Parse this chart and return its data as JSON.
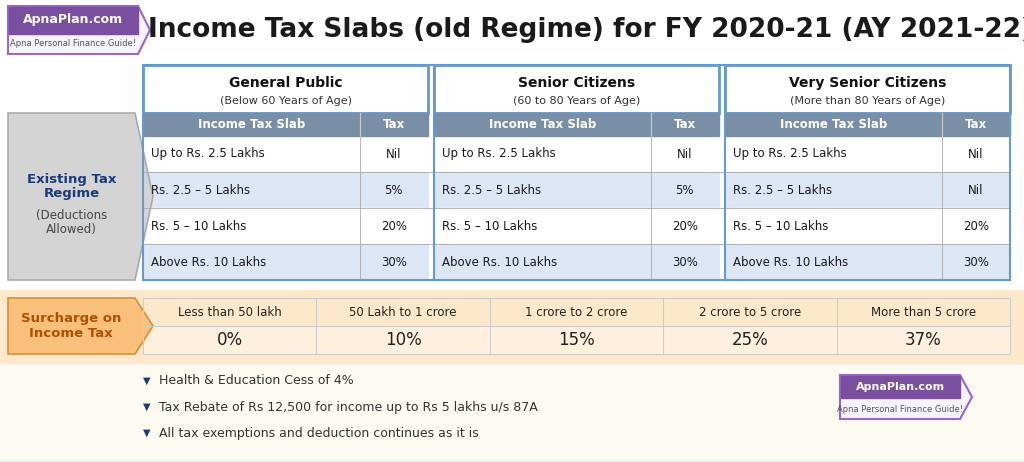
{
  "title": "Income Tax Slabs (old Regime) for FY 2020-21 (AY 2021-22)",
  "title_fontsize": 19,
  "bg_color": "#f0f0f0",
  "col_groups": [
    "General Public",
    "Senior Citizens",
    "Very Senior Citizens"
  ],
  "col_subtitles": [
    "(Below 60 Years of Age)",
    "(60 to 80 Years of Age)",
    "(More than 80 Years of Age)"
  ],
  "table_header_bg": "#7a8fa6",
  "table_header_fg": "#ffffff",
  "row_data": [
    [
      "Up to Rs. 2.5 Lakhs",
      "Nil",
      "Up to Rs. 2.5 Lakhs",
      "Nil",
      "Up to Rs. 2.5 Lakhs",
      "Nil"
    ],
    [
      "Rs. 2.5 – 5 Lakhs",
      "5%",
      "Rs. 2.5 – 5 Lakhs",
      "5%",
      "Rs. 2.5 – 5 Lakhs",
      "Nil"
    ],
    [
      "Rs. 5 – 10 Lakhs",
      "20%",
      "Rs. 5 – 10 Lakhs",
      "20%",
      "Rs. 5 – 10 Lakhs",
      "20%"
    ],
    [
      "Above Rs. 10 Lakhs",
      "30%",
      "Above Rs. 10 Lakhs",
      "30%",
      "Above Rs. 10 Lakhs",
      "30%"
    ]
  ],
  "row_bg_odd": "#ffffff",
  "row_bg_even": "#dce6f4",
  "left_label1": "Existing Tax\nRegime",
  "left_label2": "(Deductions\nAllowed)",
  "left_label_color": "#1a3a7a",
  "surcharge_label": "Surcharge on\nIncome Tax",
  "surcharge_label_color": "#b05000",
  "surcharge_bg": "#fde8cc",
  "surcharge_cols": [
    "Less than 50 lakh",
    "50 Lakh to 1 crore",
    "1 crore to 2 crore",
    "2 crore to 5 crore",
    "More than 5 crore"
  ],
  "surcharge_vals": [
    "0%",
    "10%",
    "15%",
    "25%",
    "37%"
  ],
  "note_bg": "#fdfaf2",
  "notes": [
    "Health & Education Cess of 4%",
    "Tax Rebate of Rs 12,500 for income up to Rs 5 lakhs u/s 87A",
    "All tax exemptions and deduction continues as it is"
  ],
  "note_bullet_color": "#1a3a7a",
  "note_text_color": "#333333",
  "group_header_border": "#6699cc",
  "logo_top_color": "#7b4fa0",
  "logo_text": "ApnaPlan.com",
  "logo_subtext": "Apna Personal Finance Guide!",
  "title_area_bg": "#f0f0f0",
  "table_area_bg": "#ffffff"
}
